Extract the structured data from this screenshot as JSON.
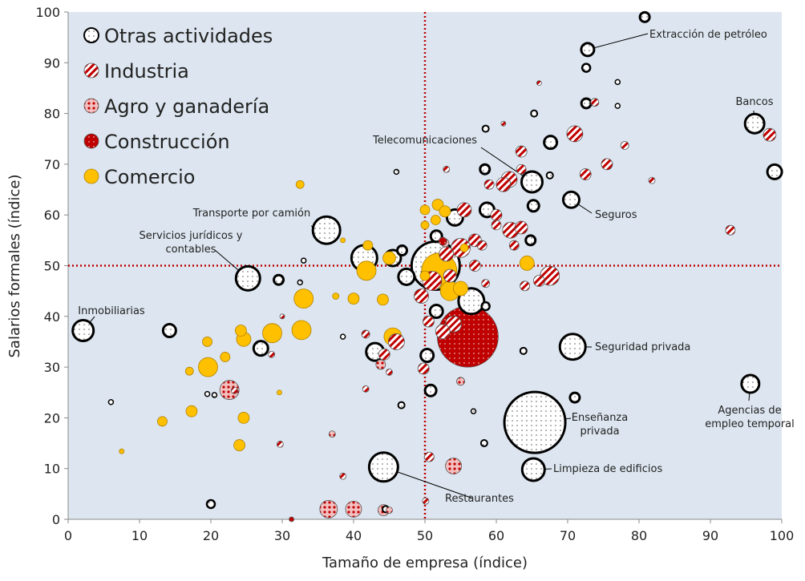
{
  "chart_data": {
    "type": "bubble",
    "xlabel": "Tamaño de empresa (índice)",
    "ylabel": "Salarios formales (índice)",
    "xlim": [
      0,
      100
    ],
    "ylim": [
      0,
      100
    ],
    "xticks": [
      0,
      10,
      20,
      30,
      40,
      50,
      60,
      70,
      80,
      90,
      100
    ],
    "yticks": [
      0,
      10,
      20,
      30,
      40,
      50,
      60,
      70,
      80,
      90,
      100
    ],
    "reference_lines": {
      "x": 50,
      "y": 50,
      "color": "#c00000"
    },
    "background": "#dde6f0",
    "legend": "upper left",
    "series": [
      {
        "name": "Otras actividades",
        "color": "#000000",
        "pattern": "dots-light",
        "x": [
          72.8,
          80.8,
          72.6,
          72.6,
          96.2,
          99,
          65,
          70.5,
          67.6,
          36.2,
          25.2,
          2.1,
          14.2,
          27,
          29.5,
          70.7,
          95.6,
          71,
          65.4,
          65.2,
          44.2,
          20,
          43,
          41.5,
          45.5,
          46.8,
          47.4,
          51.5,
          56.5,
          54.2,
          51.6,
          50.3,
          50.8,
          58.7,
          58.4,
          64.8,
          65.2,
          58.5,
          58.5,
          65.3,
          58.3,
          46.7,
          51.6,
          67.5,
          77,
          77,
          46,
          33,
          32.5,
          6,
          19.5,
          20.5,
          38.5,
          56.8,
          63.8,
          44.5
        ],
        "values": [
          92.6,
          99,
          89,
          82,
          78,
          68.5,
          66.5,
          63,
          74.3,
          57,
          47.5,
          37.2,
          37.2,
          33.7,
          47.2,
          34,
          26.7,
          24,
          19.1,
          9.8,
          10.3,
          3,
          33,
          51.5,
          51.5,
          53,
          47.8,
          50,
          43,
          59.5,
          41,
          32.3,
          25.4,
          61,
          69,
          55,
          61.8,
          42,
          77,
          80,
          15,
          22.5,
          55.8,
          67.8,
          86.2,
          81.5,
          68.5,
          51,
          46.7,
          23.1,
          24.7,
          24.5,
          36,
          21.3,
          33.2,
          2
        ],
        "sizes": [
          8,
          6,
          5,
          6,
          12,
          9,
          13,
          10,
          8,
          17,
          15,
          13,
          8,
          9,
          6,
          16,
          11,
          6,
          38,
          14,
          18,
          5,
          11,
          16,
          10,
          6,
          10,
          30,
          16,
          10,
          8,
          8,
          7,
          9,
          6,
          6,
          7,
          5,
          4,
          4,
          4,
          4,
          7,
          4,
          3,
          3,
          3,
          3,
          3,
          3,
          3,
          3,
          3,
          3,
          4,
          4
        ],
        "labels": [
          [
            "Extracción de petróleo"
          ],
          null,
          null,
          null,
          [
            "Bancos"
          ],
          null,
          [
            "Telecomunicaciones"
          ],
          [
            "Seguros"
          ],
          null,
          [
            "Transporte por camión"
          ],
          [
            "Servicios jurídicos y",
            "contables"
          ],
          [
            "Inmobiliarias"
          ],
          null,
          null,
          null,
          [
            "Seguridad privada"
          ],
          [
            "Agencias de",
            "empleo temporal"
          ],
          null,
          [
            "Enseñanza",
            "privada"
          ],
          [
            "Limpieza de edificios"
          ],
          [
            "Restaurantes"
          ],
          null,
          null,
          null,
          null,
          null,
          null,
          null,
          null,
          null,
          null,
          null,
          null,
          null,
          null,
          null,
          null,
          null,
          null,
          null,
          null,
          null,
          null,
          null,
          null,
          null,
          null,
          null,
          null,
          null,
          null,
          null,
          null,
          null,
          null,
          null
        ]
      },
      {
        "name": "Industria",
        "color": "#c00000",
        "pattern": "stripes",
        "x": [
          71,
          73.8,
          75.5,
          78,
          72.5,
          98.3,
          81.8,
          92.8,
          61.8,
          63.5,
          63.5,
          61,
          59,
          62,
          63.5,
          60,
          58,
          60,
          64,
          67.5,
          66,
          62.5,
          55,
          57,
          53,
          51,
          53.5,
          49.5,
          50.5,
          52.5,
          54,
          57,
          58.5,
          46,
          44.3,
          45,
          49.8,
          41.7,
          41.7,
          28.5,
          30,
          50.6,
          55.5,
          53,
          66,
          61,
          50.1,
          38.5,
          29.7,
          23.3
        ],
        "values": [
          76,
          82.2,
          70,
          73.7,
          68,
          75.8,
          66.8,
          57,
          67,
          72.5,
          69,
          66,
          66,
          57,
          57.5,
          60,
          54,
          58,
          46,
          48,
          47,
          54,
          53.5,
          55,
          52.3,
          47,
          48,
          44,
          39,
          37,
          38.5,
          50,
          46.5,
          35,
          32.5,
          29,
          29.7,
          36.5,
          25.7,
          32.5,
          40,
          12.3,
          61,
          69,
          86,
          78,
          3.6,
          8.5,
          14.8,
          25.4
        ],
        "sizes": [
          10,
          5,
          7,
          5,
          7,
          8,
          4,
          6,
          10,
          7,
          6,
          9,
          6,
          10,
          8,
          7,
          6,
          6,
          6,
          12,
          7,
          6,
          12,
          8,
          9,
          12,
          8,
          9,
          7,
          9,
          10,
          7,
          5,
          10,
          7,
          4,
          7,
          5,
          4,
          4,
          3,
          6,
          9,
          4,
          3,
          3,
          4,
          4,
          4,
          4
        ]
      },
      {
        "name": "Agro y ganadería",
        "color": "#c00000",
        "pattern": "dots-dense",
        "x": [
          36.5,
          40,
          44.2,
          45,
          54,
          22.6,
          43.8,
          55,
          37,
          52.8
        ],
        "values": [
          2,
          2,
          1.8,
          1.8,
          10.5,
          25.5,
          30.5,
          27.2,
          16.8,
          54.5
        ],
        "sizes": [
          11,
          10,
          7,
          4,
          10,
          12,
          6,
          5,
          4,
          5
        ]
      },
      {
        "name": "Construcción",
        "color": "#c00000",
        "pattern": "dots-dark",
        "x": [
          56,
          52.5,
          31.3
        ],
        "values": [
          36,
          54.8,
          0
        ],
        "sizes": [
          38,
          5,
          3
        ]
      },
      {
        "name": "Comercio",
        "color": "#ffc000",
        "pattern": "solid",
        "x": [
          52,
          53.5,
          55,
          50,
          51.8,
          50,
          52.8,
          51.5,
          50,
          55.5,
          45,
          42,
          41.8,
          44.1,
          33,
          32.7,
          28.6,
          24.2,
          24.6,
          22,
          19.5,
          19.6,
          17,
          17.3,
          13.2,
          24.6,
          24,
          29.6,
          32.5,
          40,
          37.5,
          45.5,
          64.3,
          7.5,
          38.5
        ],
        "values": [
          49,
          45,
          45.5,
          48,
          62,
          61,
          60.7,
          59,
          58,
          53.5,
          51.5,
          54,
          49,
          43.3,
          43.5,
          37.3,
          36.7,
          37.2,
          35.5,
          32,
          35,
          30,
          29.2,
          21.3,
          19.3,
          20,
          14.6,
          25,
          66,
          43.5,
          44,
          36,
          50.5,
          13.4,
          55
        ],
        "sizes": [
          22,
          12,
          9,
          6,
          7,
          6,
          7,
          6,
          5,
          5,
          8,
          6,
          12,
          7,
          12,
          12,
          12,
          7,
          9,
          6,
          6,
          12,
          5,
          7,
          6,
          7,
          7,
          3,
          5,
          7,
          4,
          11,
          9,
          3,
          3
        ]
      }
    ]
  }
}
